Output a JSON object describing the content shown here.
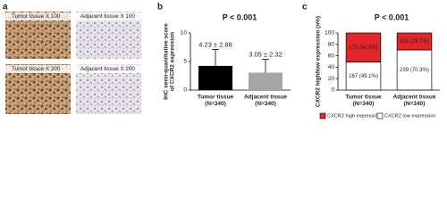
{
  "panel_labels": [
    "a",
    "b",
    "c"
  ],
  "images": [
    {
      "label": "Tumor tissue X 100"
    },
    {
      "label": "Adjacent tissue X 100"
    },
    {
      "label": "Tumor tissue X 200"
    },
    {
      "label": "Adjacent tissue X 200"
    }
  ],
  "chart_data": [
    {
      "type": "bar",
      "title": "P < 0.001",
      "ylabel": [
        "IHC semi-quantitative score",
        "of CXCR2 expression"
      ],
      "categories": [
        [
          "Tumor tissue",
          "(N=340)"
        ],
        [
          "Adjacent tissue",
          "(N=340)"
        ]
      ],
      "values": [
        4.23,
        3.05
      ],
      "errors": [
        2.88,
        2.32
      ],
      "value_labels": [
        "4.23 ± 2.88",
        "3.05 ± 2.32"
      ],
      "colors": [
        "#000000",
        "#a6a6a6"
      ],
      "ylim": [
        0,
        10
      ],
      "yticks": [
        0,
        5,
        10
      ]
    },
    {
      "type": "stacked_bar",
      "title": "P < 0.001",
      "ylabel": "CXCR2 high/low expression (n%)",
      "categories": [
        [
          "Tumor tissue",
          "(N=340)"
        ],
        [
          "Adjacent tissue",
          "(N=340)"
        ]
      ],
      "series": [
        {
          "name": "CXCR2 low expression",
          "color": "#ffffff",
          "values": [
            49.1,
            70.3
          ],
          "value_labels": [
            "167 (49.1%)",
            "239 (70.3%)"
          ]
        },
        {
          "name": "CXCR2 high expression",
          "color": "#e3262a",
          "values": [
            50.9,
            29.7
          ],
          "value_labels": [
            "173 (50.9%)",
            "101 (29.7%)"
          ]
        }
      ],
      "legend_order": [
        1,
        0
      ],
      "ylim": [
        0,
        100
      ],
      "yticks": [
        0,
        20,
        40,
        60,
        80,
        100
      ]
    }
  ]
}
